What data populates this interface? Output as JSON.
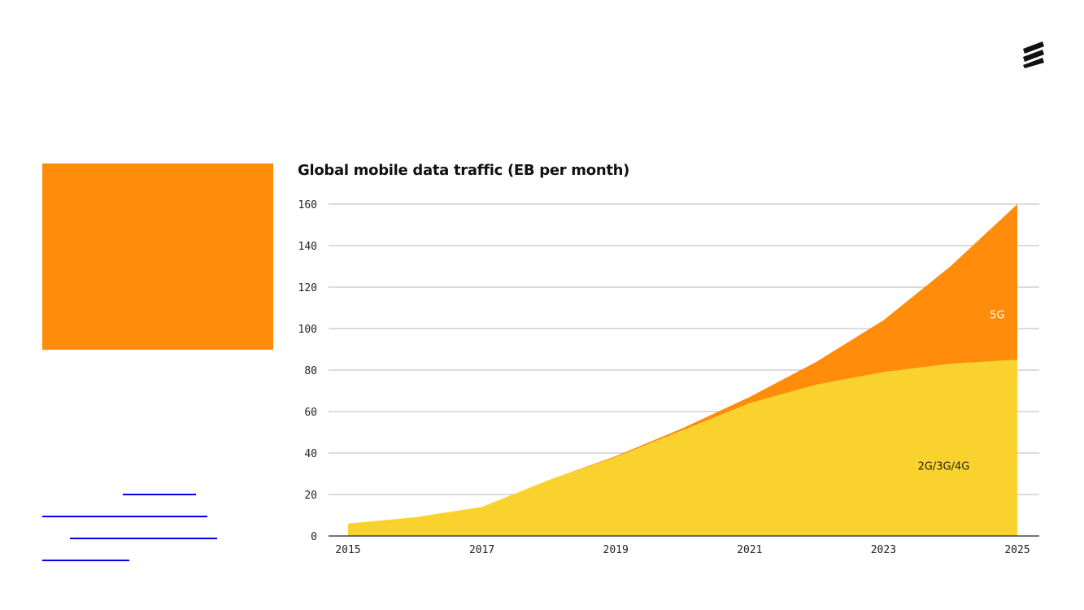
{
  "colors": {
    "accent_panel": "#FF8C0A",
    "series_2g3g4g": "#FAD22D",
    "series_5g": "#FF8C0A",
    "gridline": "#B8B8B8",
    "link": "#0000EE"
  },
  "logo": {
    "icon": "ericsson-logo-icon"
  },
  "chart_data": {
    "type": "area",
    "stacked": true,
    "title": "Global mobile data traffic (EB per month)",
    "xlabel": "",
    "ylabel": "",
    "x": [
      2015,
      2016,
      2017,
      2018,
      2019,
      2020,
      2021,
      2022,
      2023,
      2024,
      2025
    ],
    "x_tick_labels": [
      "2015",
      "2017",
      "2019",
      "2021",
      "2023",
      "2025"
    ],
    "y_tick_labels": [
      "0",
      "20",
      "40",
      "60",
      "80",
      "100",
      "120",
      "140",
      "160"
    ],
    "ylim": [
      0,
      160
    ],
    "grid": true,
    "series": [
      {
        "name": "2G/3G/4G",
        "values": [
          6,
          9,
          14,
          27,
          38,
          51,
          64,
          73,
          79,
          83,
          85
        ]
      },
      {
        "name": "5G",
        "values": [
          0,
          0,
          0,
          0,
          0.5,
          1,
          3,
          11,
          25,
          47,
          75
        ]
      }
    ]
  }
}
